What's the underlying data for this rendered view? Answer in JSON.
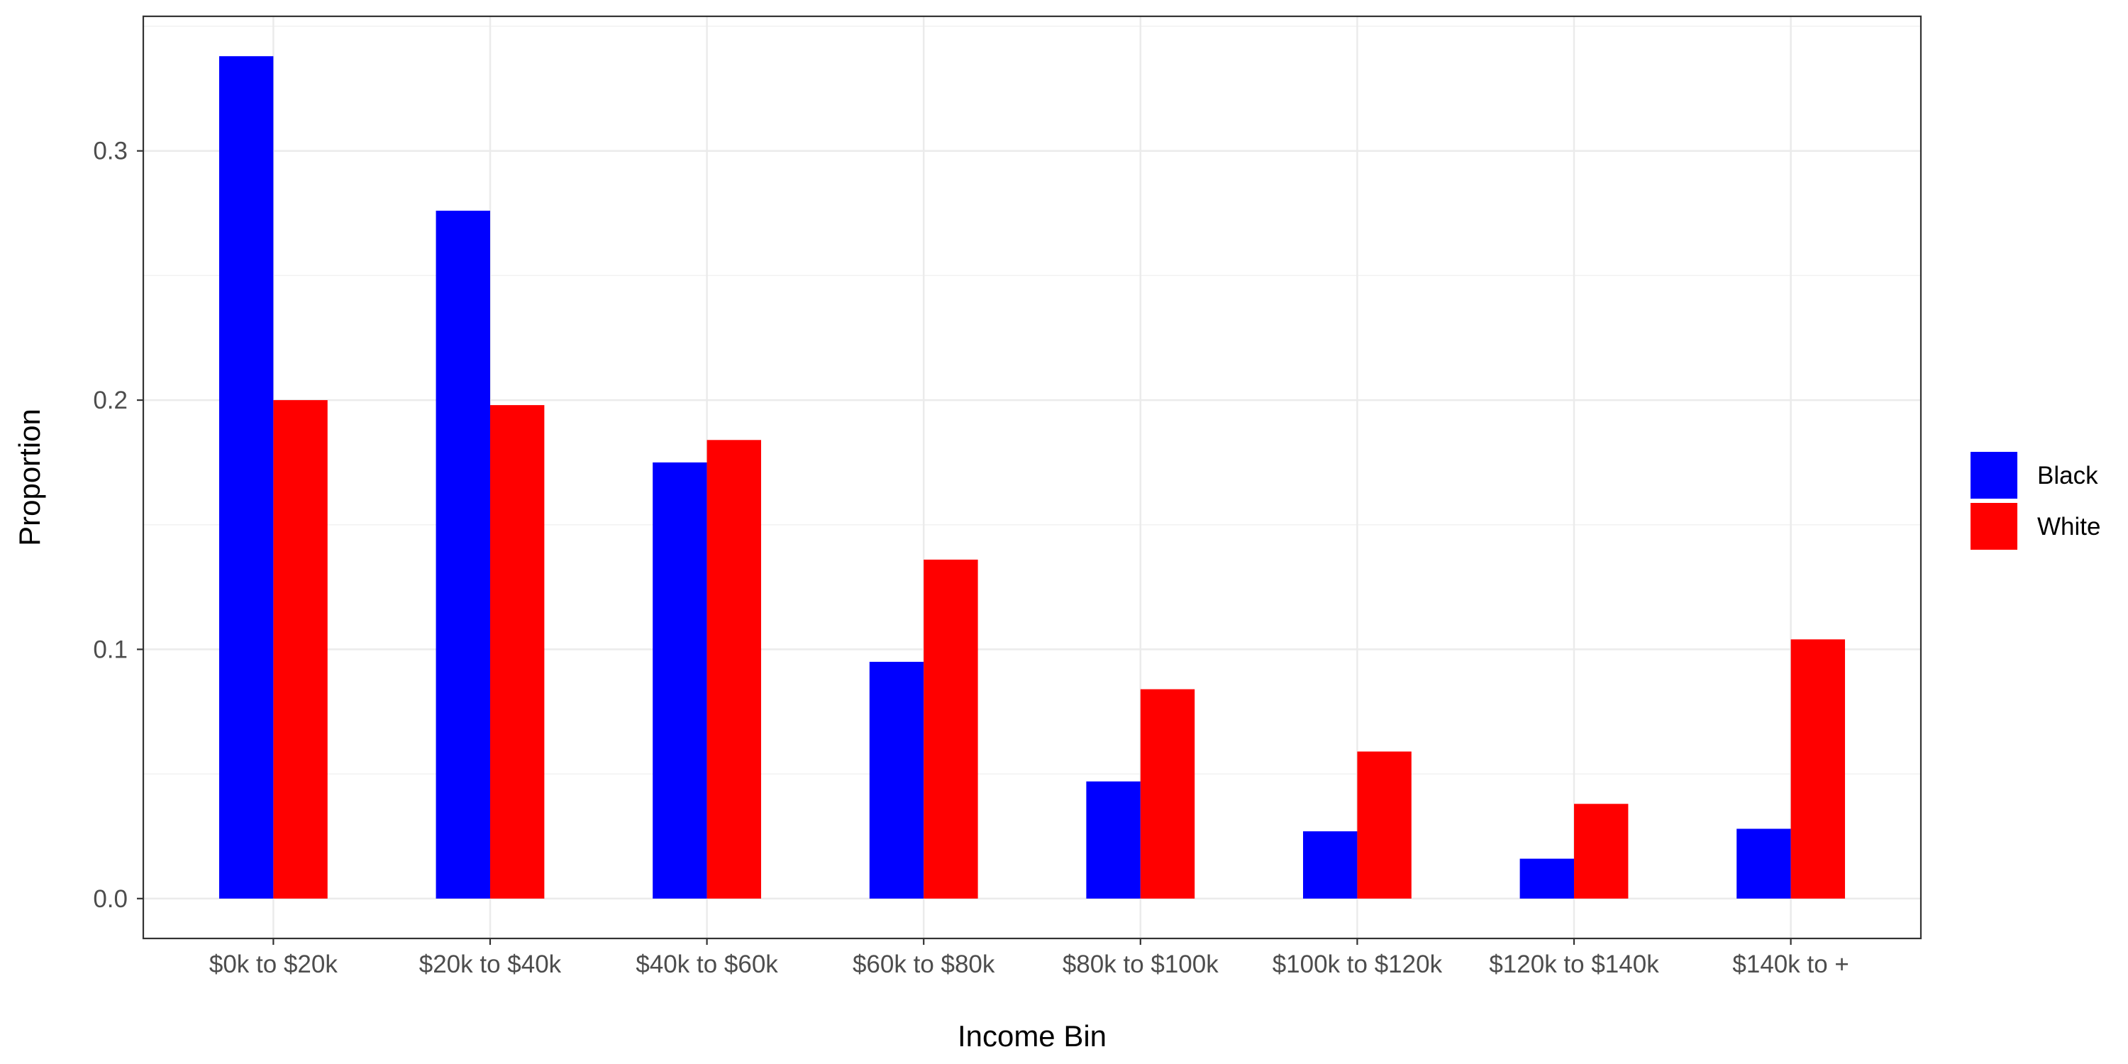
{
  "chart_data": {
    "type": "bar",
    "xlabel": "Income Bin",
    "ylabel": "Proportion",
    "ylim": [
      -0.016,
      0.354
    ],
    "yticks": [
      0.0,
      0.1,
      0.2,
      0.3
    ],
    "ytick_labels": [
      "0.0",
      "0.1",
      "0.2",
      "0.3"
    ],
    "grid": true,
    "legend_position": "right",
    "categories": [
      "$0k to $20k",
      "$20k to $40k",
      "$40k to $60k",
      "$60k to $80k",
      "$80k to $100k",
      "$100k to $120k",
      "$120k to $140k",
      "$140k to +"
    ],
    "series": [
      {
        "name": "Black",
        "color": "#0000ff",
        "values": [
          0.338,
          0.276,
          0.175,
          0.095,
          0.047,
          0.027,
          0.016,
          0.028
        ]
      },
      {
        "name": "White",
        "color": "#ff0000",
        "values": [
          0.2,
          0.198,
          0.184,
          0.136,
          0.084,
          0.059,
          0.038,
          0.104
        ]
      }
    ]
  }
}
